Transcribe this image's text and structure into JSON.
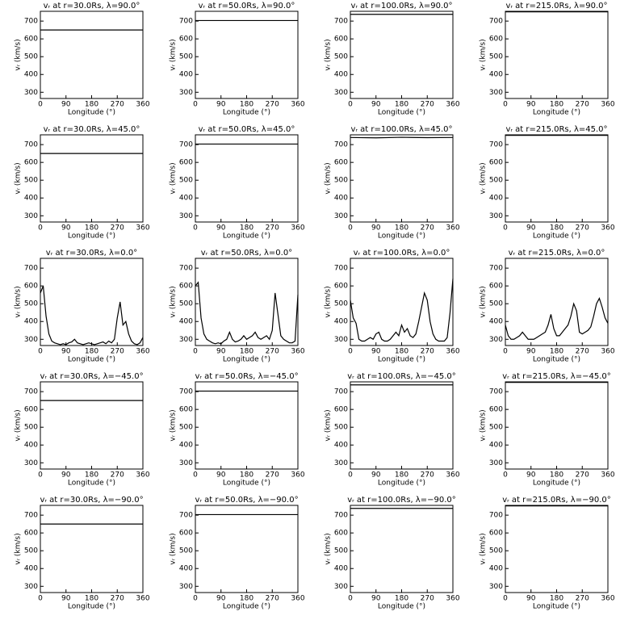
{
  "chart_data": [
    {
      "type": "line",
      "title": "vᵣ at r=30.0Rs, λ=90.0°",
      "xlabel": "Longitude (°)",
      "ylabel": "vᵣ (km/s)",
      "x": [
        0,
        360
      ],
      "values": [
        650,
        650
      ],
      "xlim": [
        0,
        360
      ],
      "ylim": [
        265,
        755
      ],
      "xticks": [
        0,
        90,
        180,
        270,
        360
      ],
      "yticks": [
        300,
        400,
        500,
        600,
        700
      ],
      "color": "#000000"
    },
    {
      "type": "line",
      "title": "vᵣ at r=50.0Rs, λ=90.0°",
      "xlabel": "Longitude (°)",
      "ylabel": "vᵣ (km/s)",
      "x": [
        0,
        360
      ],
      "values": [
        703,
        703
      ],
      "xlim": [
        0,
        360
      ],
      "ylim": [
        265,
        755
      ],
      "xticks": [
        0,
        90,
        180,
        270,
        360
      ],
      "yticks": [
        300,
        400,
        500,
        600,
        700
      ],
      "color": "#000000"
    },
    {
      "type": "line",
      "title": "vᵣ at r=100.0Rs, λ=90.0°",
      "xlabel": "Longitude (°)",
      "ylabel": "vᵣ (km/s)",
      "x": [
        0,
        360
      ],
      "values": [
        738,
        738
      ],
      "xlim": [
        0,
        360
      ],
      "ylim": [
        265,
        755
      ],
      "xticks": [
        0,
        90,
        180,
        270,
        360
      ],
      "yticks": [
        300,
        400,
        500,
        600,
        700
      ],
      "color": "#000000"
    },
    {
      "type": "line",
      "title": "vᵣ at r=215.0Rs, λ=90.0°",
      "xlabel": "Longitude (°)",
      "ylabel": "vᵣ (km/s)",
      "x": [
        0,
        360
      ],
      "values": [
        752,
        752
      ],
      "xlim": [
        0,
        360
      ],
      "ylim": [
        265,
        755
      ],
      "xticks": [
        0,
        90,
        180,
        270,
        360
      ],
      "yticks": [
        300,
        400,
        500,
        600,
        700
      ],
      "color": "#000000"
    },
    {
      "type": "line",
      "title": "vᵣ at r=30.0Rs, λ=45.0°",
      "xlabel": "Longitude (°)",
      "ylabel": "vᵣ (km/s)",
      "x": [
        0,
        360
      ],
      "values": [
        650,
        650
      ],
      "xlim": [
        0,
        360
      ],
      "ylim": [
        265,
        755
      ],
      "xticks": [
        0,
        90,
        180,
        270,
        360
      ],
      "yticks": [
        300,
        400,
        500,
        600,
        700
      ],
      "color": "#000000"
    },
    {
      "type": "line",
      "title": "vᵣ at r=50.0Rs, λ=45.0°",
      "xlabel": "Longitude (°)",
      "ylabel": "vᵣ (km/s)",
      "x": [
        0,
        360
      ],
      "values": [
        703,
        703
      ],
      "xlim": [
        0,
        360
      ],
      "ylim": [
        265,
        755
      ],
      "xticks": [
        0,
        90,
        180,
        270,
        360
      ],
      "yticks": [
        300,
        400,
        500,
        600,
        700
      ],
      "color": "#000000"
    },
    {
      "type": "line",
      "title": "vᵣ at r=100.0Rs, λ=45.0°",
      "xlabel": "Longitude (°)",
      "ylabel": "vᵣ (km/s)",
      "x": [
        0,
        90,
        180,
        270,
        360
      ],
      "values": [
        740,
        738,
        741,
        739,
        740
      ],
      "xlim": [
        0,
        360
      ],
      "ylim": [
        265,
        755
      ],
      "xticks": [
        0,
        90,
        180,
        270,
        360
      ],
      "yticks": [
        300,
        400,
        500,
        600,
        700
      ],
      "color": "#000000"
    },
    {
      "type": "line",
      "title": "vᵣ at r=215.0Rs, λ=45.0°",
      "xlabel": "Longitude (°)",
      "ylabel": "vᵣ (km/s)",
      "x": [
        0,
        360
      ],
      "values": [
        752,
        752
      ],
      "xlim": [
        0,
        360
      ],
      "ylim": [
        265,
        755
      ],
      "xticks": [
        0,
        90,
        180,
        270,
        360
      ],
      "yticks": [
        300,
        400,
        500,
        600,
        700
      ],
      "color": "#000000"
    },
    {
      "type": "line",
      "title": "vᵣ at r=30.0Rs, λ=0.0°",
      "xlabel": "Longitude (°)",
      "ylabel": "vᵣ (km/s)",
      "x": [
        0,
        10,
        20,
        30,
        40,
        50,
        60,
        70,
        80,
        90,
        100,
        110,
        120,
        130,
        140,
        150,
        160,
        170,
        180,
        190,
        200,
        210,
        220,
        230,
        240,
        250,
        260,
        270,
        280,
        290,
        300,
        310,
        320,
        330,
        340,
        350,
        360
      ],
      "values": [
        560,
        600,
        430,
        330,
        290,
        280,
        275,
        270,
        275,
        270,
        280,
        285,
        300,
        280,
        275,
        270,
        275,
        280,
        275,
        270,
        275,
        280,
        285,
        275,
        290,
        280,
        300,
        420,
        510,
        380,
        400,
        330,
        290,
        275,
        270,
        280,
        310
      ],
      "xlim": [
        0,
        360
      ],
      "ylim": [
        265,
        755
      ],
      "xticks": [
        0,
        90,
        180,
        270,
        360
      ],
      "yticks": [
        300,
        400,
        500,
        600,
        700
      ],
      "color": "#000000"
    },
    {
      "type": "line",
      "title": "vᵣ at r=50.0Rs, λ=0.0°",
      "xlabel": "Longitude (°)",
      "ylabel": "vᵣ (km/s)",
      "x": [
        0,
        10,
        20,
        30,
        40,
        50,
        60,
        70,
        80,
        90,
        100,
        110,
        120,
        130,
        140,
        150,
        160,
        170,
        180,
        190,
        200,
        210,
        220,
        230,
        240,
        250,
        260,
        270,
        280,
        290,
        300,
        310,
        320,
        330,
        340,
        350,
        360
      ],
      "values": [
        600,
        620,
        420,
        330,
        300,
        290,
        280,
        275,
        280,
        275,
        290,
        300,
        340,
        300,
        285,
        290,
        300,
        320,
        300,
        310,
        320,
        340,
        310,
        300,
        310,
        320,
        300,
        350,
        560,
        440,
        320,
        300,
        290,
        280,
        280,
        290,
        550
      ],
      "xlim": [
        0,
        360
      ],
      "ylim": [
        265,
        755
      ],
      "xticks": [
        0,
        90,
        180,
        270,
        360
      ],
      "yticks": [
        300,
        400,
        500,
        600,
        700
      ],
      "color": "#000000"
    },
    {
      "type": "line",
      "title": "vᵣ at r=100.0Rs, λ=0.0°",
      "xlabel": "Longitude (°)",
      "ylabel": "vᵣ (km/s)",
      "x": [
        0,
        10,
        20,
        30,
        40,
        50,
        60,
        70,
        80,
        90,
        100,
        110,
        120,
        130,
        140,
        150,
        160,
        170,
        180,
        190,
        200,
        210,
        220,
        230,
        240,
        250,
        260,
        270,
        280,
        290,
        300,
        310,
        320,
        330,
        340,
        350,
        360
      ],
      "values": [
        520,
        420,
        390,
        300,
        290,
        290,
        300,
        310,
        300,
        330,
        340,
        300,
        290,
        290,
        300,
        320,
        340,
        320,
        380,
        340,
        360,
        320,
        310,
        330,
        400,
        480,
        560,
        520,
        400,
        330,
        300,
        290,
        290,
        290,
        310,
        450,
        640
      ],
      "xlim": [
        0,
        360
      ],
      "ylim": [
        265,
        755
      ],
      "xticks": [
        0,
        90,
        180,
        270,
        360
      ],
      "yticks": [
        300,
        400,
        500,
        600,
        700
      ],
      "color": "#000000"
    },
    {
      "type": "line",
      "title": "vᵣ at r=215.0Rs, λ=0.0°",
      "xlabel": "Longitude (°)",
      "ylabel": "vᵣ (km/s)",
      "x": [
        0,
        10,
        20,
        30,
        40,
        50,
        60,
        70,
        80,
        90,
        100,
        110,
        120,
        130,
        140,
        150,
        160,
        170,
        180,
        190,
        200,
        210,
        220,
        230,
        240,
        250,
        260,
        270,
        280,
        290,
        300,
        310,
        320,
        330,
        340,
        350,
        360
      ],
      "values": [
        380,
        320,
        300,
        300,
        310,
        320,
        340,
        320,
        300,
        300,
        300,
        310,
        320,
        330,
        340,
        380,
        440,
        360,
        320,
        320,
        340,
        360,
        380,
        430,
        500,
        460,
        340,
        330,
        340,
        350,
        370,
        430,
        500,
        530,
        480,
        420,
        390
      ],
      "xlim": [
        0,
        360
      ],
      "ylim": [
        265,
        755
      ],
      "xticks": [
        0,
        90,
        180,
        270,
        360
      ],
      "yticks": [
        300,
        400,
        500,
        600,
        700
      ],
      "color": "#000000"
    },
    {
      "type": "line",
      "title": "vᵣ at r=30.0Rs, λ=−45.0°",
      "xlabel": "Longitude (°)",
      "ylabel": "vᵣ (km/s)",
      "x": [
        0,
        360
      ],
      "values": [
        650,
        650
      ],
      "xlim": [
        0,
        360
      ],
      "ylim": [
        265,
        755
      ],
      "xticks": [
        0,
        90,
        180,
        270,
        360
      ],
      "yticks": [
        300,
        400,
        500,
        600,
        700
      ],
      "color": "#000000"
    },
    {
      "type": "line",
      "title": "vᵣ at r=50.0Rs, λ=−45.0°",
      "xlabel": "Longitude (°)",
      "ylabel": "vᵣ (km/s)",
      "x": [
        0,
        360
      ],
      "values": [
        703,
        703
      ],
      "xlim": [
        0,
        360
      ],
      "ylim": [
        265,
        755
      ],
      "xticks": [
        0,
        90,
        180,
        270,
        360
      ],
      "yticks": [
        300,
        400,
        500,
        600,
        700
      ],
      "color": "#000000"
    },
    {
      "type": "line",
      "title": "vᵣ at r=100.0Rs, λ=−45.0°",
      "xlabel": "Longitude (°)",
      "ylabel": "vᵣ (km/s)",
      "x": [
        0,
        360
      ],
      "values": [
        738,
        738
      ],
      "xlim": [
        0,
        360
      ],
      "ylim": [
        265,
        755
      ],
      "xticks": [
        0,
        90,
        180,
        270,
        360
      ],
      "yticks": [
        300,
        400,
        500,
        600,
        700
      ],
      "color": "#000000"
    },
    {
      "type": "line",
      "title": "vᵣ at r=215.0Rs, λ=−45.0°",
      "xlabel": "Longitude (°)",
      "ylabel": "vᵣ (km/s)",
      "x": [
        0,
        360
      ],
      "values": [
        752,
        752
      ],
      "xlim": [
        0,
        360
      ],
      "ylim": [
        265,
        755
      ],
      "xticks": [
        0,
        90,
        180,
        270,
        360
      ],
      "yticks": [
        300,
        400,
        500,
        600,
        700
      ],
      "color": "#000000"
    },
    {
      "type": "line",
      "title": "vᵣ at r=30.0Rs, λ=−90.0°",
      "xlabel": "Longitude (°)",
      "ylabel": "vᵣ (km/s)",
      "x": [
        0,
        360
      ],
      "values": [
        650,
        650
      ],
      "xlim": [
        0,
        360
      ],
      "ylim": [
        265,
        755
      ],
      "xticks": [
        0,
        90,
        180,
        270,
        360
      ],
      "yticks": [
        300,
        400,
        500,
        600,
        700
      ],
      "color": "#000000"
    },
    {
      "type": "line",
      "title": "vᵣ at r=50.0Rs, λ=−90.0°",
      "xlabel": "Longitude (°)",
      "ylabel": "vᵣ (km/s)",
      "x": [
        0,
        360
      ],
      "values": [
        703,
        703
      ],
      "xlim": [
        0,
        360
      ],
      "ylim": [
        265,
        755
      ],
      "xticks": [
        0,
        90,
        180,
        270,
        360
      ],
      "yticks": [
        300,
        400,
        500,
        600,
        700
      ],
      "color": "#000000"
    },
    {
      "type": "line",
      "title": "vᵣ at r=100.0Rs, λ=−90.0°",
      "xlabel": "Longitude (°)",
      "ylabel": "vᵣ (km/s)",
      "x": [
        0,
        360
      ],
      "values": [
        738,
        738
      ],
      "xlim": [
        0,
        360
      ],
      "ylim": [
        265,
        755
      ],
      "xticks": [
        0,
        90,
        180,
        270,
        360
      ],
      "yticks": [
        300,
        400,
        500,
        600,
        700
      ],
      "color": "#000000"
    },
    {
      "type": "line",
      "title": "vᵣ at r=215.0Rs, λ=−90.0°",
      "xlabel": "Longitude (°)",
      "ylabel": "vᵣ (km/s)",
      "x": [
        0,
        360
      ],
      "values": [
        752,
        752
      ],
      "xlim": [
        0,
        360
      ],
      "ylim": [
        265,
        755
      ],
      "xticks": [
        0,
        90,
        180,
        270,
        360
      ],
      "yticks": [
        300,
        400,
        500,
        600,
        700
      ],
      "color": "#000000"
    }
  ]
}
